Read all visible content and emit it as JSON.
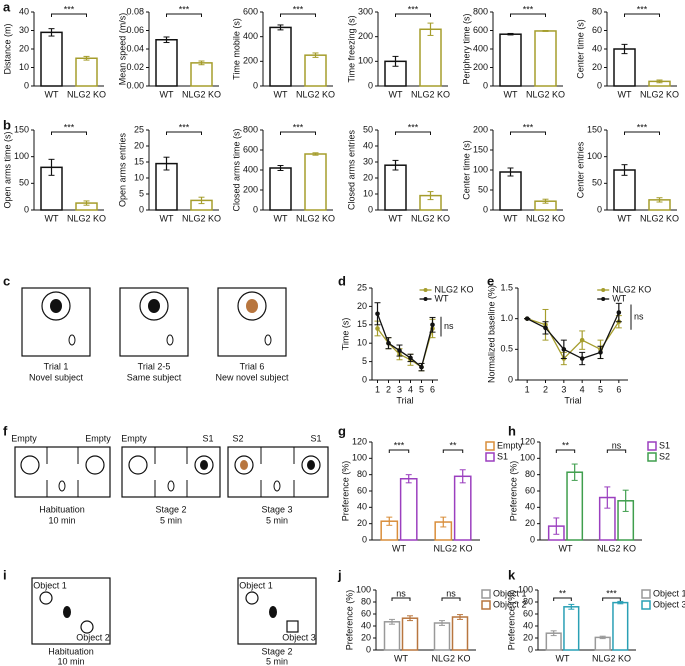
{
  "panel_labels": [
    "a",
    "b",
    "c",
    "d",
    "e",
    "f",
    "g",
    "h",
    "i",
    "j",
    "k"
  ],
  "diagram_c": {
    "panels": [
      {
        "title": "Trial 1",
        "subtitle": "Novel subject"
      },
      {
        "title": "Trial 2-5",
        "subtitle": "Same subject"
      },
      {
        "title": "Trial 6",
        "subtitle": "New novel subject"
      }
    ]
  },
  "diagram_f": {
    "panels": [
      {
        "left": "Empty",
        "right": "Empty",
        "title": "Habituation",
        "subtitle": "10 min"
      },
      {
        "left": "Empty",
        "right": "S1",
        "title": "Stage 2",
        "subtitle": "5 min"
      },
      {
        "left": "S2",
        "right": "S1",
        "title": "Stage 3",
        "subtitle": "5 min"
      }
    ]
  },
  "diagram_i": {
    "panels": [
      {
        "labels": [
          "Object 1",
          "Object 2"
        ],
        "title": "Habituation",
        "subtitle": "10 min"
      },
      {
        "labels": [
          "Object 1",
          "Object 3"
        ],
        "title": "Stage 2",
        "subtitle": "5 min"
      }
    ]
  },
  "chart_data": [
    {
      "type": "bar",
      "ylabel": "Distance (m)",
      "categories": [
        "WT",
        "NLG2 KO"
      ],
      "values": [
        29,
        15
      ],
      "errors": [
        2,
        1
      ],
      "colors": [
        "#111111",
        "#a59d2c"
      ],
      "ylim": [
        0,
        40
      ],
      "yticks": [
        0,
        10,
        20,
        30,
        40
      ],
      "annotations": [
        "***"
      ]
    },
    {
      "type": "bar",
      "ylabel": "Mean speed (m/s)",
      "categories": [
        "WT",
        "NLG2 KO"
      ],
      "values": [
        0.05,
        0.025
      ],
      "errors": [
        0.003,
        0.002
      ],
      "colors": [
        "#111111",
        "#a59d2c"
      ],
      "ylim": [
        0,
        0.08
      ],
      "yticks": [
        {
          "value": 0,
          "label": "0.00"
        },
        {
          "value": 0.02,
          "label": "0.02"
        },
        {
          "value": 0.04,
          "label": "0.04"
        },
        {
          "value": 0.06,
          "label": "0.06"
        },
        {
          "value": 0.08,
          "label": "0.08"
        }
      ],
      "annotations": [
        "***"
      ]
    },
    {
      "type": "bar",
      "ylabel": "Time mobile (s)",
      "categories": [
        "WT",
        "NLG2 KO"
      ],
      "values": [
        475,
        250
      ],
      "errors": [
        20,
        18
      ],
      "colors": [
        "#111111",
        "#a59d2c"
      ],
      "ylim": [
        0,
        600
      ],
      "yticks": [
        0,
        200,
        400,
        600
      ],
      "annotations": [
        "***"
      ]
    },
    {
      "type": "bar",
      "ylabel": "Time freezing (s)",
      "categories": [
        "WT",
        "NLG2 KO"
      ],
      "values": [
        100,
        230
      ],
      "errors": [
        20,
        25
      ],
      "colors": [
        "#111111",
        "#a59d2c"
      ],
      "ylim": [
        0,
        300
      ],
      "yticks": [
        0,
        100,
        200,
        300
      ],
      "annotations": [
        "***"
      ]
    },
    {
      "type": "bar",
      "ylabel": "Periphery time (s)",
      "categories": [
        "WT",
        "NLG2 KO"
      ],
      "values": [
        560,
        595
      ],
      "errors": [
        8,
        5
      ],
      "colors": [
        "#111111",
        "#a59d2c"
      ],
      "ylim": [
        0,
        800
      ],
      "yticks": [
        0,
        200,
        400,
        600,
        800
      ],
      "annotations": [
        "***"
      ]
    },
    {
      "type": "bar",
      "ylabel": "Center time (s)",
      "categories": [
        "WT",
        "NLG2 KO"
      ],
      "values": [
        40,
        5
      ],
      "errors": [
        5,
        1.5
      ],
      "colors": [
        "#111111",
        "#a59d2c"
      ],
      "ylim": [
        0,
        80
      ],
      "yticks": [
        0,
        20,
        40,
        60,
        80
      ],
      "annotations": [
        "***"
      ]
    },
    {
      "type": "bar",
      "ylabel": "Open arms time (s)",
      "categories": [
        "WT",
        "NLG2 KO"
      ],
      "values": [
        80,
        13
      ],
      "errors": [
        15,
        4
      ],
      "colors": [
        "#111111",
        "#a59d2c"
      ],
      "ylim": [
        0,
        150
      ],
      "yticks": [
        0,
        50,
        100,
        150
      ],
      "annotations": [
        "***"
      ]
    },
    {
      "type": "bar",
      "ylabel": "Open arms entries",
      "categories": [
        "WT",
        "NLG2 KO"
      ],
      "values": [
        14.5,
        3
      ],
      "errors": [
        2,
        1
      ],
      "colors": [
        "#111111",
        "#a59d2c"
      ],
      "ylim": [
        0,
        25
      ],
      "yticks": [
        0,
        5,
        10,
        15,
        20,
        25
      ],
      "annotations": [
        "***"
      ]
    },
    {
      "type": "bar",
      "ylabel": "Closed arms time (s)",
      "categories": [
        "WT",
        "NLG2 KO"
      ],
      "values": [
        420,
        560
      ],
      "errors": [
        25,
        12
      ],
      "colors": [
        "#111111",
        "#a59d2c"
      ],
      "ylim": [
        0,
        800
      ],
      "yticks": [
        0,
        200,
        400,
        600,
        800
      ],
      "annotations": [
        "***"
      ]
    },
    {
      "type": "bar",
      "ylabel": "Closed arms entries",
      "categories": [
        "WT",
        "NLG2 KO"
      ],
      "values": [
        28,
        9
      ],
      "errors": [
        3,
        2.5
      ],
      "colors": [
        "#111111",
        "#a59d2c"
      ],
      "ylim": [
        0,
        50
      ],
      "yticks": [
        0,
        10,
        20,
        30,
        40,
        50
      ],
      "annotations": [
        "***"
      ]
    },
    {
      "type": "bar",
      "ylabel": "Center time (s)",
      "categories": [
        "WT",
        "NLG2 KO"
      ],
      "values": [
        95,
        22
      ],
      "errors": [
        10,
        5
      ],
      "colors": [
        "#111111",
        "#a59d2c"
      ],
      "ylim": [
        0,
        200
      ],
      "yticks": [
        0,
        50,
        100,
        150,
        200
      ],
      "annotations": [
        "***"
      ]
    },
    {
      "type": "bar",
      "ylabel": "Center entries",
      "categories": [
        "WT",
        "NLG2 KO"
      ],
      "values": [
        75,
        19
      ],
      "errors": [
        10,
        4
      ],
      "colors": [
        "#111111",
        "#a59d2c"
      ],
      "ylim": [
        0,
        150
      ],
      "yticks": [
        0,
        50,
        100,
        150
      ],
      "annotations": [
        "***"
      ]
    },
    {
      "type": "line",
      "ylabel": "Time (s)",
      "xlabel": "Trial",
      "x": [
        1,
        2,
        3,
        4,
        5,
        6
      ],
      "xlim": [
        0.5,
        6.5
      ],
      "xticks": [
        1,
        2,
        3,
        4,
        5,
        6
      ],
      "ylim": [
        0,
        25
      ],
      "yticks": [
        0,
        5,
        10,
        15,
        20,
        25
      ],
      "series": [
        {
          "name": "NLG2 KO",
          "color": "#a59d2c",
          "values": [
            14,
            10,
            7,
            5.5,
            3.5,
            14
          ],
          "errors": [
            2,
            1.5,
            1.5,
            1.5,
            1,
            2.5
          ]
        },
        {
          "name": "WT",
          "color": "#111111",
          "values": [
            18,
            10,
            8,
            6,
            3.5,
            15
          ],
          "errors": [
            3,
            1.5,
            1.5,
            1,
            1,
            2
          ]
        }
      ],
      "annotations": [
        "ns"
      ]
    },
    {
      "type": "line",
      "ylabel": "Normalized baseline (%)",
      "xlabel": "Trial",
      "x": [
        1,
        2,
        3,
        4,
        5,
        6
      ],
      "xlim": [
        0.5,
        6.5
      ],
      "xticks": [
        1,
        2,
        3,
        4,
        5,
        6
      ],
      "ylim": [
        0,
        1.5
      ],
      "yticks": [
        0,
        0.5,
        {
          "value": 1,
          "label": "1.0"
        },
        1.5
      ],
      "series": [
        {
          "name": "NLG2 KO",
          "color": "#a59d2c",
          "values": [
            1,
            0.9,
            0.35,
            0.65,
            0.5,
            0.95
          ],
          "errors": [
            0,
            0.25,
            0.1,
            0.15,
            0.15,
            0.1
          ]
        },
        {
          "name": "WT",
          "color": "#111111",
          "values": [
            1,
            0.85,
            0.5,
            0.35,
            0.45,
            1.1
          ],
          "errors": [
            0,
            0.1,
            0.15,
            0.1,
            0.1,
            0.15
          ]
        }
      ],
      "annotations": [
        "ns"
      ]
    },
    {
      "type": "grouped_bar",
      "ylabel": "Preference (%)",
      "categories": [
        "WT",
        "NLG2 KO"
      ],
      "ylim": [
        0,
        120
      ],
      "yticks": [
        0,
        20,
        40,
        60,
        80,
        100,
        120
      ],
      "series": [
        {
          "name": "Empty",
          "color": "#d98e3b",
          "values": [
            23,
            22
          ],
          "errors": [
            5,
            6
          ]
        },
        {
          "name": "S1",
          "color": "#9b3fbf",
          "values": [
            75,
            78
          ],
          "errors": [
            5,
            8
          ]
        }
      ],
      "annotations": [
        "***",
        "**"
      ]
    },
    {
      "type": "grouped_bar",
      "ylabel": "Preference (%)",
      "categories": [
        "WT",
        "NLG2 KO"
      ],
      "ylim": [
        0,
        120
      ],
      "yticks": [
        0,
        20,
        40,
        60,
        80,
        100,
        120
      ],
      "series": [
        {
          "name": "S1",
          "color": "#9b3fbf",
          "values": [
            17,
            52
          ],
          "errors": [
            10,
            13
          ]
        },
        {
          "name": "S2",
          "color": "#3f9e4d",
          "values": [
            83,
            48
          ],
          "errors": [
            10,
            13
          ]
        }
      ],
      "annotations": [
        "**",
        "ns"
      ]
    },
    {
      "type": "grouped_bar",
      "ylabel": "Preference (%)",
      "categories": [
        "WT",
        "NLG2 KO"
      ],
      "ylim": [
        0,
        100
      ],
      "yticks": [
        0,
        20,
        40,
        60,
        80,
        100
      ],
      "series": [
        {
          "name": "Object 1",
          "color": "#999999",
          "values": [
            47,
            45
          ],
          "errors": [
            4,
            4
          ]
        },
        {
          "name": "Object 2",
          "color": "#b8763f",
          "values": [
            53,
            55
          ],
          "errors": [
            4,
            4
          ]
        }
      ],
      "annotations": [
        "ns",
        "ns"
      ]
    },
    {
      "type": "grouped_bar",
      "ylabel": "Preference (%)",
      "categories": [
        "WT",
        "NLG2 KO"
      ],
      "ylim": [
        0,
        100
      ],
      "yticks": [
        0,
        20,
        40,
        60,
        80,
        100
      ],
      "series": [
        {
          "name": "Object 1",
          "color": "#999999",
          "values": [
            28,
            21
          ],
          "errors": [
            4,
            2
          ]
        },
        {
          "name": "Object 3",
          "color": "#2aa0b5",
          "values": [
            72,
            79
          ],
          "errors": [
            4,
            2
          ]
        }
      ],
      "annotations": [
        "**",
        "***"
      ]
    }
  ]
}
